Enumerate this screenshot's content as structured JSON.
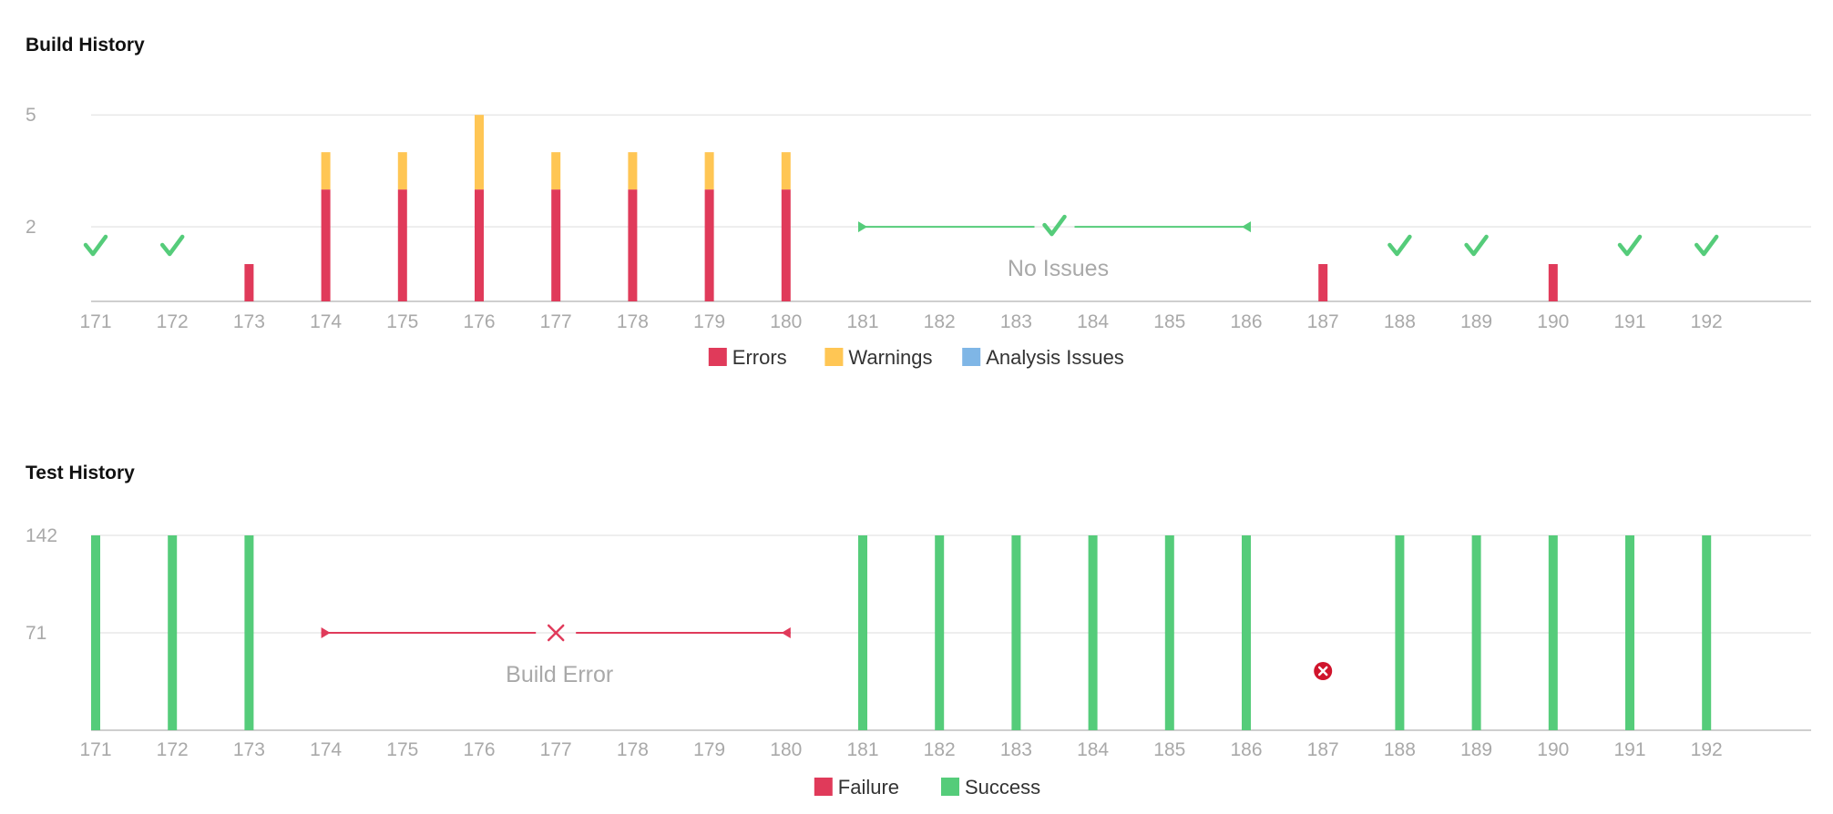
{
  "colors": {
    "error": "#e03a5a",
    "warning": "#ffc654",
    "analysis": "#7fb6e6",
    "success": "#55cc7a",
    "failure": "#e03a5a",
    "grid": "#e8e8e8",
    "axis": "#cfcfcf",
    "tick_text": "#a9a9a9"
  },
  "chart_data": [
    {
      "type": "bar",
      "title": "Build History",
      "categories": [
        "171",
        "172",
        "173",
        "174",
        "175",
        "176",
        "177",
        "178",
        "179",
        "180",
        "181",
        "182",
        "183",
        "184",
        "185",
        "186",
        "187",
        "188",
        "189",
        "190",
        "191",
        "192"
      ],
      "yticks": [
        2,
        5
      ],
      "ylim": [
        0,
        5.2
      ],
      "series": [
        {
          "name": "Errors",
          "values": [
            0,
            0,
            1,
            3,
            3,
            3,
            3,
            3,
            3,
            3,
            0,
            0,
            0,
            0,
            0,
            0,
            1,
            0,
            0,
            1,
            0,
            0
          ]
        },
        {
          "name": "Warnings",
          "values": [
            0,
            0,
            0,
            1,
            1,
            2,
            1,
            1,
            1,
            1,
            0,
            0,
            0,
            0,
            0,
            0,
            0,
            0,
            0,
            0,
            0,
            0
          ]
        },
        {
          "name": "Analysis Issues",
          "values": [
            0,
            0,
            0,
            0,
            0,
            0,
            0,
            0,
            0,
            0,
            0,
            0,
            0,
            0,
            0,
            0,
            0,
            0,
            0,
            0,
            0,
            0
          ]
        }
      ],
      "success_markers": [
        "171",
        "172",
        "188",
        "189",
        "191",
        "192"
      ],
      "range_annotations": [
        {
          "from": "181",
          "to": "186",
          "label": "No Issues",
          "status": "success"
        }
      ],
      "legend": [
        "Errors",
        "Warnings",
        "Analysis Issues"
      ],
      "legend_position": "bottom"
    },
    {
      "type": "bar",
      "title": "Test History",
      "categories": [
        "171",
        "172",
        "173",
        "174",
        "175",
        "176",
        "177",
        "178",
        "179",
        "180",
        "181",
        "182",
        "183",
        "184",
        "185",
        "186",
        "187",
        "188",
        "189",
        "190",
        "191",
        "192"
      ],
      "yticks": [
        71,
        142
      ],
      "ylim": [
        0,
        142
      ],
      "series": [
        {
          "name": "Failure",
          "values": [
            0,
            0,
            0,
            0,
            0,
            0,
            0,
            0,
            0,
            0,
            0,
            0,
            0,
            0,
            0,
            0,
            0,
            0,
            0,
            0,
            0,
            0
          ]
        },
        {
          "name": "Success",
          "values": [
            142,
            142,
            142,
            0,
            0,
            0,
            0,
            0,
            0,
            0,
            142,
            142,
            142,
            142,
            142,
            142,
            0,
            142,
            142,
            142,
            142,
            142
          ]
        }
      ],
      "failure_markers": [
        "187"
      ],
      "range_annotations": [
        {
          "from": "174",
          "to": "180",
          "label": "Build Error",
          "status": "failure"
        }
      ],
      "legend": [
        "Failure",
        "Success"
      ],
      "legend_position": "bottom"
    }
  ]
}
